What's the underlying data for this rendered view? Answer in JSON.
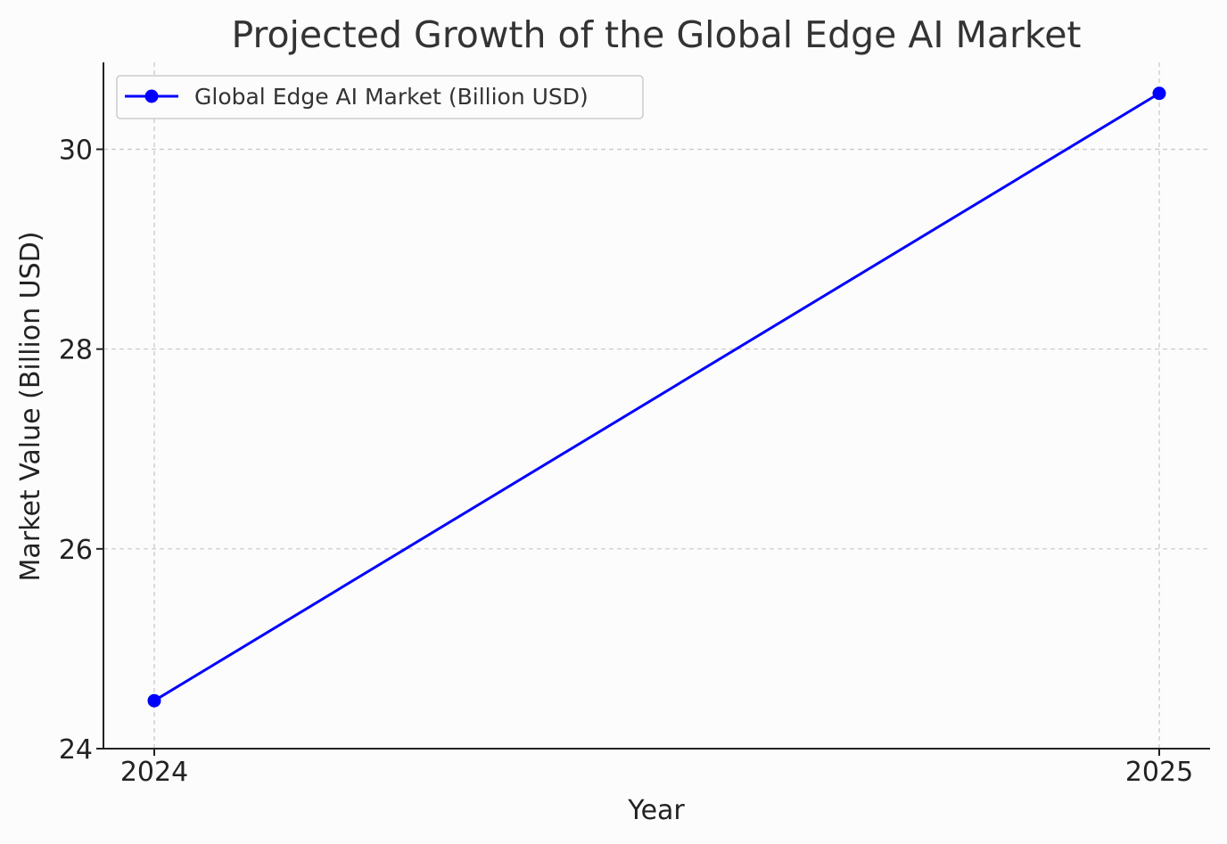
{
  "chart_data": {
    "type": "line",
    "title": "Projected Growth of the Global Edge AI Market",
    "xlabel": "Year",
    "ylabel": "Market Value (Billion USD)",
    "x": [
      "2024",
      "2025"
    ],
    "series": [
      {
        "name": "Global Edge AI Market (Billion USD)",
        "values": [
          24.48,
          30.56
        ],
        "color": "#0000ff",
        "marker": "circle"
      }
    ],
    "ylim": [
      24,
      30.87
    ],
    "yticks": [
      24,
      26,
      28,
      30
    ],
    "grid": true,
    "grid_style": "dashed",
    "legend": "top-left"
  }
}
